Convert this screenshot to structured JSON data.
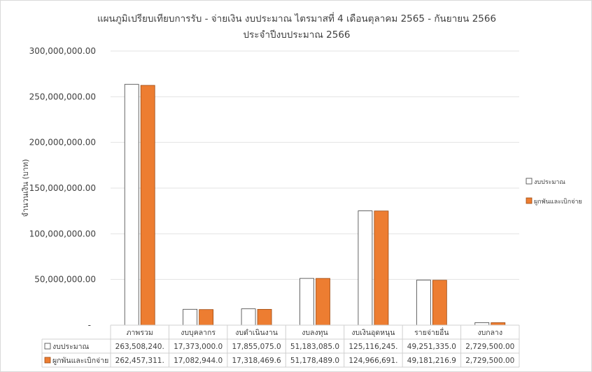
{
  "chart_data": {
    "type": "bar",
    "title": "แผนภูมิเปรียบเทียบการรับ - จ่ายเงิน งบประมาณ ไตรมาสที่ 4 เดือนตุลาคม 2565 - กันยายน 2566",
    "subtitle": "ประจำปีงบประมาณ 2566",
    "ylabel": "จำนวนเงิน (บาท)",
    "xlabel": "",
    "ylim": [
      0,
      300000000
    ],
    "yticks": [
      "300,000,000.00",
      "250,000,000.00",
      "200,000,000.00",
      "150,000,000.00",
      "100,000,000.00",
      "50,000,000.00",
      "-"
    ],
    "ytick_values": [
      300000000,
      250000000,
      200000000,
      150000000,
      100000000,
      50000000,
      0
    ],
    "grid": true,
    "legend_position": "right",
    "categories": [
      "ภาพรวม",
      "งบบุคลากร",
      "งบดำเนินงาน",
      "งบลงทุน",
      "งบเงินอุดหนุน",
      "รายจ่ายอื่น",
      "งบกลาง"
    ],
    "series": [
      {
        "name": "งบประมาณ",
        "color": "#ffffff",
        "values": [
          263508240,
          17373000,
          17855075,
          51183085,
          125116245,
          49251335,
          2729500
        ],
        "table_labels": [
          "263,508,240.",
          "17,373,000.0",
          "17,855,075.0",
          "51,183,085.0",
          "125,116,245.",
          "49,251,335.0",
          "2,729,500.00"
        ]
      },
      {
        "name": "ผูกพันและเบิกจ่าย",
        "color": "#ed7d31",
        "values": [
          262457311,
          17082944,
          17318469.6,
          51178489,
          124966691,
          49181216.9,
          2729500
        ],
        "table_labels": [
          "262,457,311.",
          "17,082,944.0",
          "17,318,469.6",
          "51,178,489.0",
          "124,966,691.",
          "49,181,216.9",
          "2,729,500.00"
        ]
      }
    ]
  }
}
